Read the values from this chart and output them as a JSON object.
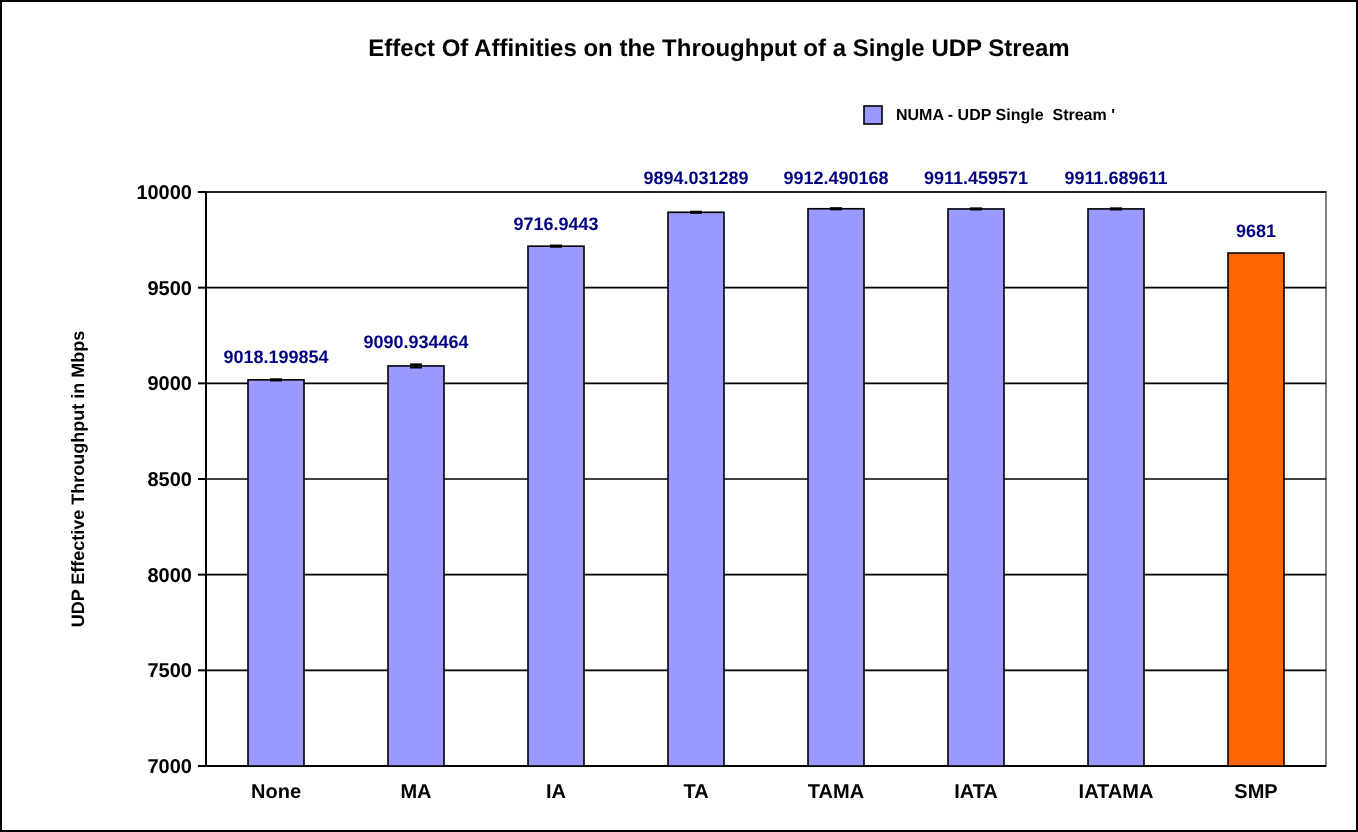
{
  "chart_data": {
    "type": "bar",
    "title": "Effect Of Affinities on the Throughput of a Single UDP Stream",
    "ylabel": "UDP Effective Throughput in Mbps",
    "categories": [
      "None",
      "MA",
      "IA",
      "TA",
      "TAMA",
      "IATA",
      "IATAMA",
      "SMP"
    ],
    "series": [
      {
        "name": "NUMA - UDP Single  Stream '",
        "color": "#9999ff",
        "colors": [
          "#9999ff",
          "#9999ff",
          "#9999ff",
          "#9999ff",
          "#9999ff",
          "#9999ff",
          "#9999ff",
          "#ff6600"
        ],
        "values": [
          9018.199854,
          9090.934464,
          9716.9443,
          9894.031289,
          9912.490168,
          9911.459571,
          9911.689611,
          9681
        ],
        "errors": [
          3,
          8,
          3,
          3,
          3,
          3,
          3,
          null
        ]
      }
    ],
    "data_labels": true,
    "ylim": [
      7000,
      10000
    ],
    "yticks": [
      7000,
      7500,
      8000,
      8500,
      9000,
      9500,
      10000
    ],
    "grid": "y",
    "legend": "top right"
  }
}
